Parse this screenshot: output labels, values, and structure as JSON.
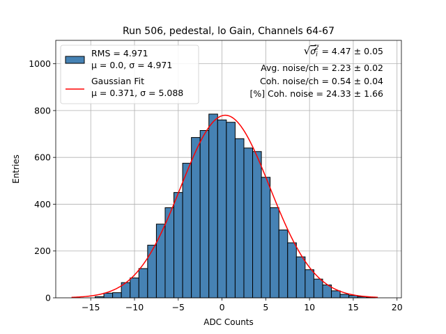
{
  "chart_data": {
    "type": "bar",
    "title": "Run 506, pedestal, lo Gain, Channels 64-67",
    "xlabel": "ADC Counts",
    "ylabel": "Entries",
    "xlim": [
      -19,
      20.5
    ],
    "ylim": [
      0,
      1100
    ],
    "xticks": [
      -15,
      -10,
      -5,
      0,
      5,
      10,
      15,
      20
    ],
    "yticks": [
      0,
      200,
      400,
      600,
      800,
      1000
    ],
    "grid": true,
    "legend_position": "top-left",
    "bin_width": 1,
    "bin_edges_start": -14.5,
    "series": [
      {
        "name": "RMS = 4.971",
        "name_line2": "μ = 0.0, σ = 4.971",
        "color": "#4682b4",
        "edge_color": "#000000",
        "values": [
          5,
          20,
          22,
          65,
          85,
          125,
          225,
          315,
          385,
          450,
          575,
          685,
          715,
          785,
          760,
          750,
          680,
          640,
          625,
          515,
          385,
          290,
          235,
          175,
          120,
          80,
          55,
          30,
          15,
          10,
          5,
          2
        ]
      }
    ],
    "fit": {
      "name": "Gaussian Fit",
      "name_line2": "μ = 0.371, σ = 5.088",
      "color": "#ff0000",
      "amplitude": 780,
      "mu": 0.371,
      "sigma": 5.088,
      "x_range": [
        -17.2,
        17.8
      ]
    },
    "annotations": [
      {
        "pre": "√",
        "sym": "σ",
        "sub": "i",
        "sup": "2",
        "text": " = 4.47 ± 0.05"
      },
      {
        "text": "Avg. noise/ch = 2.23 ± 0.02"
      },
      {
        "text": "Coh. noise/ch = 0.54 ± 0.04"
      },
      {
        "text": "[%] Coh. noise = 24.33 ± 1.66"
      }
    ]
  }
}
